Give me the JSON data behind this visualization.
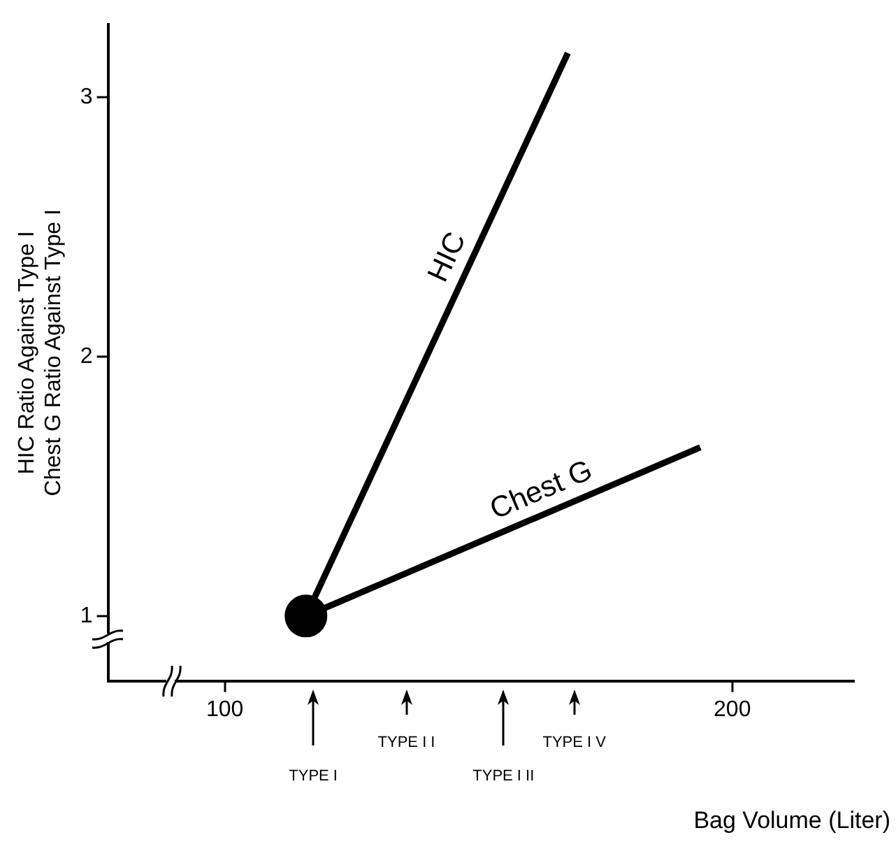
{
  "chart_data": {
    "type": "line",
    "xlabel": "Bag Volume (Liter)",
    "ylabel": "HIC Ratio Against Type I\nChest G Ratio Against Type I",
    "xlim": [
      77,
      224
    ],
    "xticks": [
      100,
      200
    ],
    "ylim": [
      0.75,
      3.28
    ],
    "yticks": [
      1,
      2,
      3
    ],
    "grid": false,
    "legend": false,
    "line_style": "solid",
    "series": [
      {
        "name": "HIC",
        "color": "#000000",
        "x": [
          116,
          167.6
        ],
        "values": [
          1,
          3.17
        ]
      },
      {
        "name": "Chest G",
        "color": "#000000",
        "x": [
          116,
          193.7
        ],
        "values": [
          1,
          1.65
        ]
      },
      {
        "type": "scatter",
        "marker": "circle",
        "color": "#000000",
        "x": [
          116
        ],
        "values": [
          1
        ]
      }
    ],
    "annotations": [
      "TYPE I",
      "TYPE I I",
      "TYPE I II",
      "TYPE I V"
    ]
  }
}
